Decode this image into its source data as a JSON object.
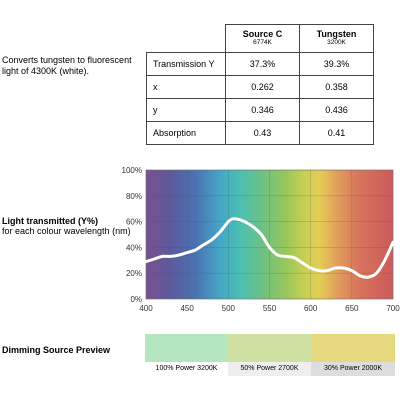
{
  "description": "Converts tungsten to fluorescent light of 4300K (white).",
  "table": {
    "columns": [
      {
        "name": "Source C",
        "sub": "6774K"
      },
      {
        "name": "Tungsten",
        "sub": "3200K"
      }
    ],
    "rows": [
      {
        "label": "Transmission Y",
        "values": [
          "37.3%",
          "39.3%"
        ]
      },
      {
        "label": "x",
        "values": [
          "0.262",
          "0.358"
        ]
      },
      {
        "label": "y",
        "values": [
          "0.346",
          "0.436"
        ]
      },
      {
        "label": "Absorption",
        "values": [
          "0.43",
          "0.41"
        ]
      }
    ]
  },
  "chart_title": "Light transmitted (Y%)",
  "chart_subtitle": "for each colour wavelength (nm)",
  "chart_data": {
    "type": "line",
    "title": "Light transmitted (Y%)",
    "xlabel": "",
    "ylabel": "",
    "xlim": [
      400,
      700
    ],
    "ylim": [
      0,
      100
    ],
    "x_ticks": [
      "400",
      "450",
      "500",
      "550",
      "600",
      "650",
      "700"
    ],
    "y_ticks": [
      "0%",
      "20%",
      "40%",
      "60%",
      "80%",
      "100%"
    ],
    "grid": true,
    "line_color": "#ffffff",
    "background": "visible spectrum gradient",
    "series": [
      {
        "x": [
          400,
          410,
          420,
          430,
          440,
          450,
          460,
          470,
          480,
          490,
          500,
          505,
          510,
          520,
          530,
          540,
          550,
          560,
          570,
          580,
          590,
          600,
          610,
          620,
          630,
          640,
          650,
          660,
          670,
          680,
          690,
          700
        ],
        "values": [
          29,
          31,
          33,
          33,
          34,
          36,
          38,
          42,
          46,
          52,
          60,
          62,
          62,
          60,
          56,
          50,
          40,
          34,
          33,
          32,
          28,
          24,
          22,
          22,
          24,
          24,
          22,
          18,
          17,
          20,
          30,
          44
        ]
      }
    ]
  },
  "preview": {
    "label": "Dimming Source Preview",
    "swatches": [
      {
        "label": "100% Power 3200K",
        "color": "#b4e6bf",
        "label_bg": "#ffffff"
      },
      {
        "label": "50% Power 2700K",
        "color": "#cfe0a3",
        "label_bg": "#eeeeee"
      },
      {
        "label": "30% Power 2000K",
        "color": "#e6d87e",
        "label_bg": "#dddddd"
      }
    ]
  }
}
